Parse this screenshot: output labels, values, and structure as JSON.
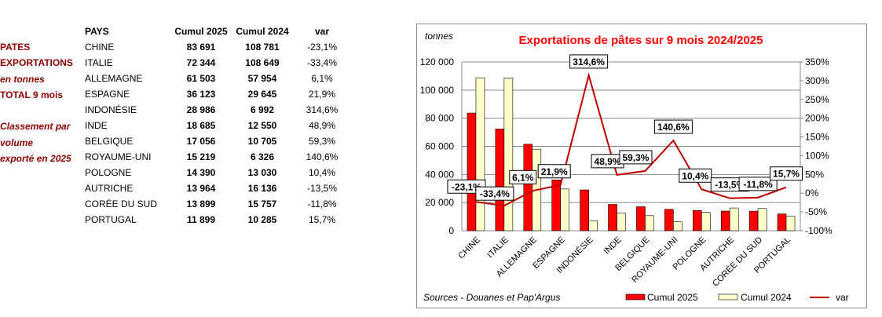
{
  "side_labels": [
    "PATES",
    "EXPORTATIONS",
    "en tonnes",
    "TOTAL 9  mois",
    "Classement par",
    "volume",
    "exporté en 2025"
  ],
  "table": {
    "headers": [
      "PAYS",
      "Cumul 2025",
      "Cumul 2024",
      "var"
    ],
    "rows": [
      [
        "CHINE",
        "83 691",
        "108 781",
        "-23,1%"
      ],
      [
        "ITALIE",
        "72 344",
        "108 649",
        "-33,4%"
      ],
      [
        "ALLEMAGNE",
        "61 503",
        "57 954",
        "6,1%"
      ],
      [
        "ESPAGNE",
        "36 123",
        "29 645",
        "21,9%"
      ],
      [
        "INDONÉSIE",
        "28 986",
        "6 992",
        "314,6%"
      ],
      [
        "INDE",
        "18 685",
        "12 550",
        "48,9%"
      ],
      [
        "BELGIQUE",
        "17 056",
        "10 705",
        "59,3%"
      ],
      [
        "ROYAUME-UNI",
        "15 219",
        "6 326",
        "140,6%"
      ],
      [
        "POLOGNE",
        "14 390",
        "13 030",
        "10,4%"
      ],
      [
        "AUTRICHE",
        "13 964",
        "16 136",
        "-13,5%"
      ],
      [
        "CORÉE DU SUD",
        "13 899",
        "15 757",
        "-11,8%"
      ],
      [
        "PORTUGAL",
        "11 899",
        "10 285",
        "15,7%"
      ]
    ]
  },
  "chart_data": {
    "type": "bar",
    "title": "Exportations de pâtes sur 9 mois 2024/2025",
    "ylabel": "tonnes",
    "source": "Sources - Douanes et Pap'Argus",
    "categories": [
      "CHINE",
      "ITALIE",
      "ALLEMAGNE",
      "ESPAGNE",
      "INDONÉSIE",
      "INDE",
      "BELGIQUE",
      "ROYAUME-UNI",
      "POLOGNE",
      "AUTRICHE",
      "CORÉE DU SUD",
      "PORTUGAL"
    ],
    "series": [
      {
        "name": "Cumul 2025",
        "type": "bar",
        "axis": "left",
        "color": "#ff0000",
        "values": [
          83691,
          72344,
          61503,
          36123,
          28986,
          18685,
          17056,
          15219,
          14390,
          13964,
          13899,
          11899
        ]
      },
      {
        "name": "Cumul 2024",
        "type": "bar",
        "axis": "left",
        "color": "#ffffcc",
        "values": [
          108781,
          108649,
          57954,
          29645,
          6992,
          12550,
          10705,
          6326,
          13030,
          16136,
          15757,
          10285
        ]
      },
      {
        "name": "var",
        "type": "line",
        "axis": "right",
        "color": "#c00000",
        "values": [
          -23.1,
          -33.4,
          6.1,
          21.9,
          314.6,
          48.9,
          59.3,
          140.6,
          10.4,
          -13.5,
          -11.8,
          15.7
        ],
        "labels": [
          "-23,1%",
          "-33,4%",
          "6,1%",
          "21,9%",
          "314,6%",
          "48,9%",
          "59,3%",
          "140,6%",
          "10,4%",
          "-13,5%",
          "-11,8%",
          "15,7%"
        ]
      }
    ],
    "ylim": [
      0,
      120000
    ],
    "yticks": [
      "0",
      "20 000",
      "40 000",
      "60 000",
      "80 000",
      "100 000",
      "120 000"
    ],
    "y2lim": [
      -100,
      350
    ],
    "y2ticks": [
      "-100%",
      "-50%",
      "0%",
      "50%",
      "100%",
      "150%",
      "200%",
      "250%",
      "300%",
      "350%"
    ],
    "grid": true,
    "legend": "bottom"
  }
}
